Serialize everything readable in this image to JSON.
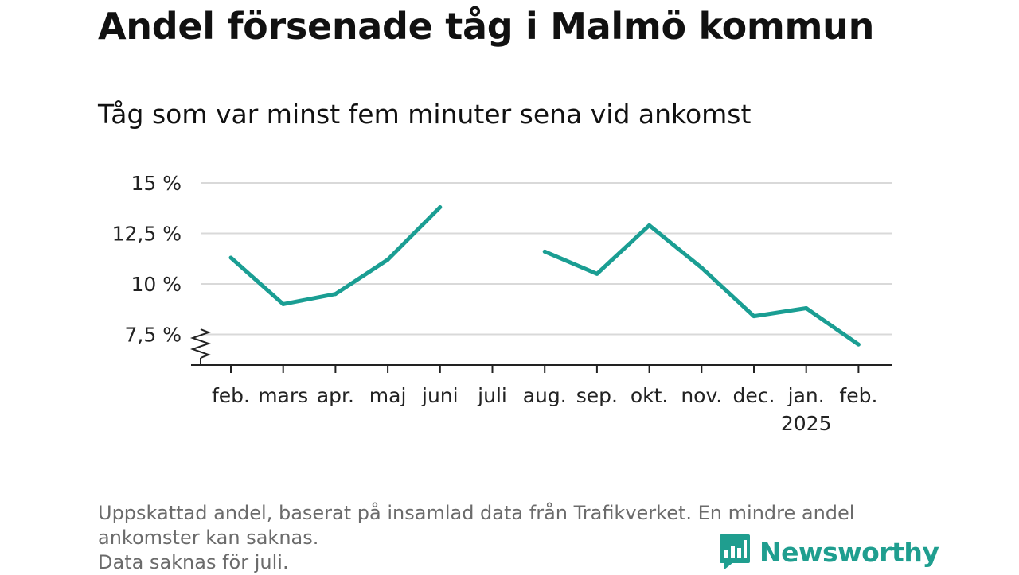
{
  "title": "Andel försenade tåg i Malmö kommun",
  "subtitle": "Tåg som var minst fem minuter sena vid ankomst",
  "footnote": {
    "line1": "Uppskattad andel, baserat på insamlad data från Trafikverket. En mindre andel",
    "line2": "ankomster kan saknas.",
    "line3": "Data saknas för juli."
  },
  "logo": {
    "text": "Newsworthy",
    "icon": "bar-chart-speech-bubble-icon"
  },
  "colors": {
    "line": "#1a9e93",
    "grid": "#d9d9d9",
    "axis": "#222222",
    "brand": "#1f9e8f"
  },
  "chart_data": {
    "type": "line",
    "categories": [
      "feb.",
      "mars",
      "apr.",
      "maj",
      "juni",
      "juli",
      "aug.",
      "sep.",
      "okt.",
      "nov.",
      "dec.",
      "jan.",
      "feb."
    ],
    "year_labels": [
      "",
      "",
      "",
      "",
      "",
      "",
      "",
      "",
      "",
      "",
      "",
      "2025",
      ""
    ],
    "series": [
      {
        "values": [
          11.3,
          9.0,
          9.5,
          11.2,
          13.8,
          null,
          11.6,
          10.5,
          12.9,
          10.8,
          8.4,
          8.8,
          7.0
        ]
      }
    ],
    "yticks": [
      7.5,
      10,
      12.5,
      15
    ],
    "ytick_labels": [
      "7,5 %",
      "10 %",
      "12,5 %",
      "15 %"
    ],
    "ylim": [
      6,
      15
    ],
    "y_axis_break": true,
    "grid": true,
    "xlabel": "",
    "ylabel": ""
  }
}
